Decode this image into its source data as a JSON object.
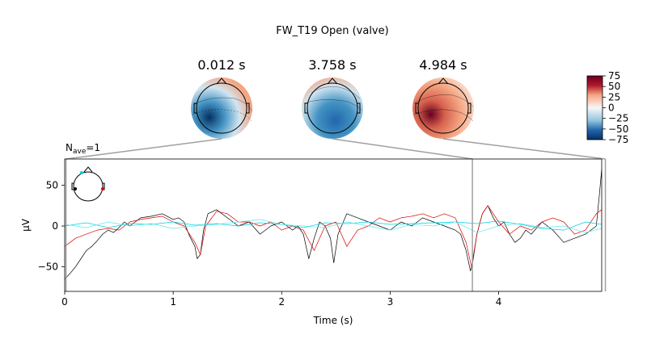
{
  "figure_title": "FW_T19 Open (valve)",
  "nave": {
    "prefix": "N",
    "sub": "ave",
    "value": "=1"
  },
  "chart_data": {
    "type": "line",
    "xlabel": "Time (s)",
    "ylabel": "µV",
    "xlim": [
      0,
      4.95
    ],
    "ylim": [
      -80,
      82
    ],
    "xticks": [
      0,
      1,
      2,
      3,
      4
    ],
    "yticks": [
      -50,
      0,
      50
    ],
    "grid": false,
    "marker_times": [
      0.012,
      3.758,
      4.984
    ],
    "series": [
      {
        "color": "#000000",
        "x": [
          0,
          0.05,
          0.1,
          0.15,
          0.2,
          0.25,
          0.3,
          0.35,
          0.4,
          0.45,
          0.5,
          0.55,
          0.6,
          0.7,
          0.8,
          0.9,
          1.0,
          1.05,
          1.1,
          1.15,
          1.2,
          1.22,
          1.25,
          1.28,
          1.32,
          1.4,
          1.5,
          1.6,
          1.7,
          1.8,
          1.9,
          2.0,
          2.1,
          2.15,
          2.2,
          2.25,
          2.3,
          2.35,
          2.4,
          2.45,
          2.48,
          2.52,
          2.6,
          2.7,
          2.8,
          2.9,
          3.0,
          3.1,
          3.2,
          3.3,
          3.4,
          3.5,
          3.6,
          3.65,
          3.7,
          3.74,
          3.76,
          3.8,
          3.85,
          3.9,
          3.95,
          4.0,
          4.05,
          4.1,
          4.15,
          4.2,
          4.25,
          4.3,
          4.4,
          4.5,
          4.6,
          4.7,
          4.8,
          4.85,
          4.9,
          4.93,
          4.95
        ],
        "values": [
          -65,
          -58,
          -50,
          -40,
          -30,
          -25,
          -18,
          -10,
          -5,
          -8,
          -2,
          5,
          0,
          10,
          12,
          15,
          8,
          10,
          5,
          -12,
          -25,
          -40,
          -35,
          -5,
          15,
          20,
          10,
          0,
          5,
          -10,
          0,
          5,
          -5,
          0,
          -10,
          -40,
          -15,
          5,
          0,
          -15,
          -45,
          -10,
          15,
          10,
          5,
          0,
          -5,
          5,
          0,
          10,
          5,
          0,
          -5,
          -10,
          -30,
          -55,
          -45,
          -10,
          15,
          25,
          10,
          0,
          5,
          -10,
          -20,
          -15,
          -5,
          -10,
          5,
          -5,
          -20,
          -15,
          -10,
          -5,
          0,
          40,
          70
        ]
      },
      {
        "color": "#e00000",
        "x": [
          0,
          0.05,
          0.1,
          0.2,
          0.3,
          0.4,
          0.5,
          0.6,
          0.7,
          0.8,
          0.9,
          1.0,
          1.1,
          1.2,
          1.25,
          1.3,
          1.4,
          1.5,
          1.6,
          1.7,
          1.8,
          1.9,
          2.0,
          2.1,
          2.2,
          2.3,
          2.4,
          2.5,
          2.6,
          2.7,
          2.8,
          2.9,
          3.0,
          3.1,
          3.2,
          3.3,
          3.4,
          3.5,
          3.6,
          3.7,
          3.75,
          3.8,
          3.85,
          3.9,
          4.0,
          4.1,
          4.2,
          4.3,
          4.4,
          4.5,
          4.6,
          4.7,
          4.8,
          4.9,
          4.95
        ],
        "values": [
          -25,
          -20,
          -15,
          -10,
          -5,
          -3,
          -5,
          5,
          8,
          10,
          12,
          5,
          0,
          -20,
          -35,
          0,
          18,
          15,
          5,
          5,
          0,
          5,
          -5,
          0,
          -5,
          -30,
          0,
          5,
          -25,
          -5,
          0,
          10,
          5,
          10,
          12,
          15,
          10,
          15,
          10,
          -20,
          -50,
          -10,
          15,
          25,
          5,
          -10,
          0,
          -5,
          5,
          10,
          5,
          -10,
          -5,
          15,
          20
        ]
      },
      {
        "color": "#00d0e0",
        "x": [
          0,
          0.2,
          0.4,
          0.6,
          0.8,
          1.0,
          1.2,
          1.4,
          1.6,
          1.8,
          2.0,
          2.2,
          2.4,
          2.6,
          2.8,
          3.0,
          3.2,
          3.4,
          3.6,
          3.8,
          4.0,
          4.2,
          4.4,
          4.6,
          4.8,
          4.95
        ],
        "values": [
          0,
          4,
          -2,
          3,
          2,
          5,
          1,
          3,
          0,
          4,
          2,
          -2,
          4,
          3,
          5,
          2,
          3,
          4,
          5,
          3,
          6,
          2,
          -3,
          -5,
          5,
          2
        ]
      },
      {
        "color": "#60e8f0",
        "x": [
          0,
          0.2,
          0.4,
          0.6,
          0.8,
          1.0,
          1.2,
          1.4,
          1.6,
          1.8,
          2.0,
          2.2,
          2.4,
          2.6,
          2.8,
          3.0,
          3.2,
          3.4,
          3.6,
          3.8,
          4.0,
          4.2,
          4.4,
          4.6,
          4.8,
          4.95
        ],
        "values": [
          2,
          -2,
          5,
          0,
          3,
          -3,
          0,
          2,
          5,
          8,
          2,
          0,
          -2,
          5,
          0,
          -5,
          2,
          0,
          5,
          -8,
          0,
          3,
          -2,
          0,
          -8,
          -3
        ]
      }
    ]
  },
  "topomaps": [
    {
      "time_label": "0.012 s",
      "colors": [
        "#f4a582",
        "#d1e5f0",
        "#4393c3",
        "#053061"
      ]
    },
    {
      "time_label": "3.758 s",
      "colors": [
        "#f4a582",
        "#d1e5f0",
        "#4393c3",
        "#2166ac"
      ]
    },
    {
      "time_label": "4.984 s",
      "colors": [
        "#fbe1d4",
        "#f4a582",
        "#d6604d",
        "#67001f"
      ]
    }
  ],
  "colorbar": {
    "ticks": [
      "75",
      "50",
      "25",
      "0",
      "−25",
      "−50",
      "−75"
    ],
    "values": [
      75,
      50,
      25,
      0,
      -25,
      -50,
      -75
    ],
    "range": [
      -75,
      75
    ]
  }
}
